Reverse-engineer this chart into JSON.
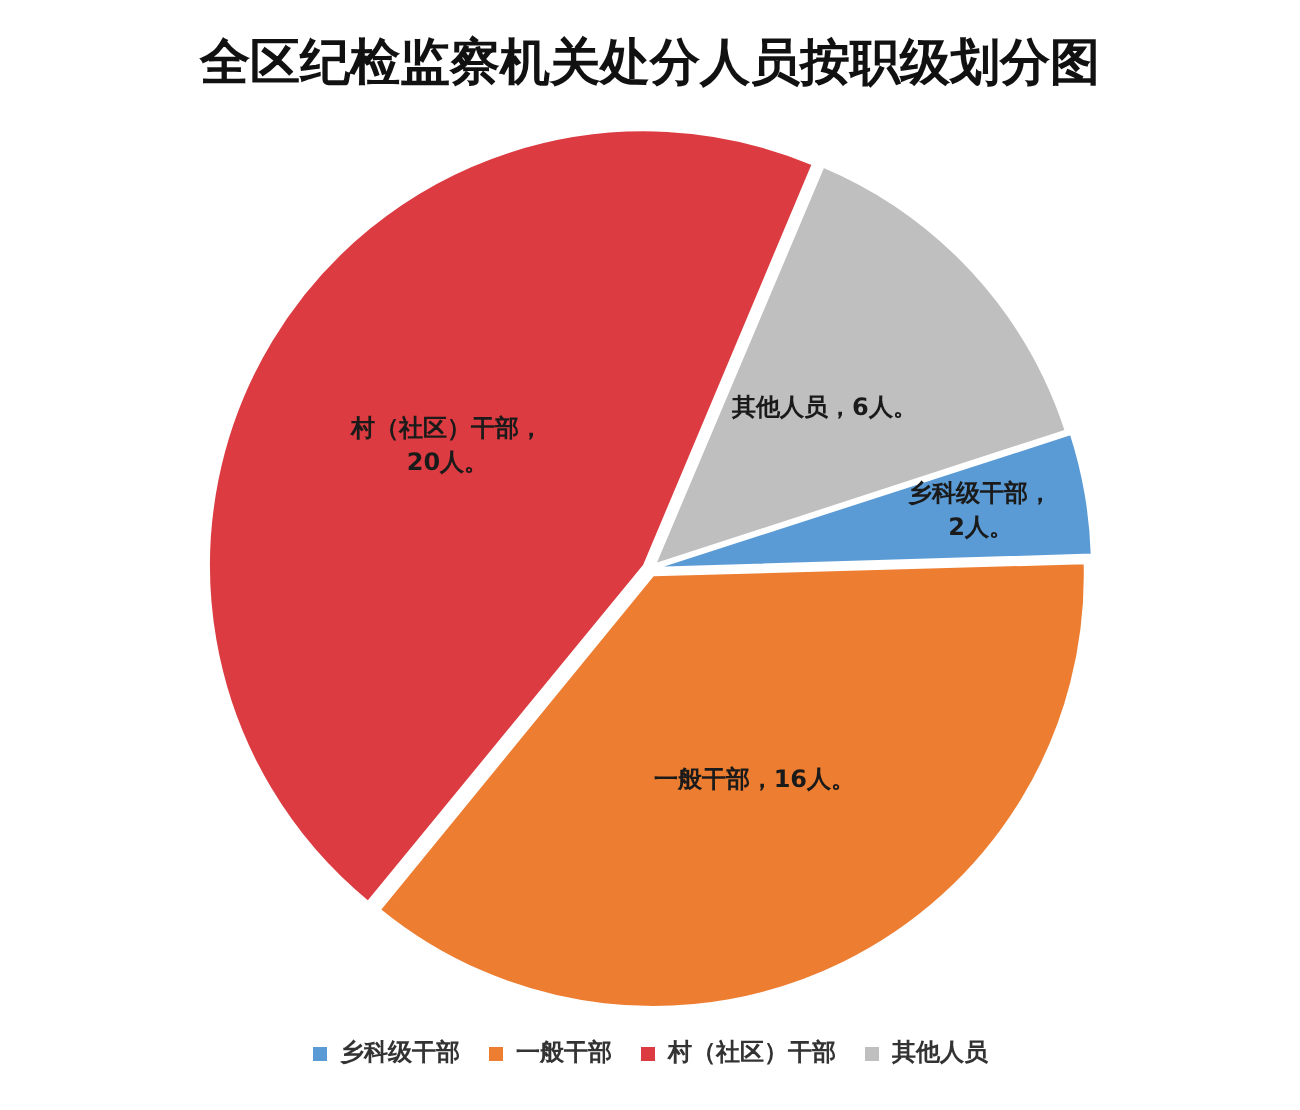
{
  "chart_data": {
    "type": "pie",
    "title": "全区纪检监察机关处分人员按职级划分图",
    "categories": [
      "乡科级干部",
      "一般干部",
      "村（社区）干部",
      "其他人员"
    ],
    "values": [
      2,
      16,
      20,
      6
    ],
    "colors": [
      "#5b9bd5",
      "#ed7d31",
      "#dc3c41",
      "#bfbfbf"
    ],
    "value_labels": [
      "乡科级干部，2人。",
      "一般干部，16人。",
      "村（社区）干部，20人。",
      "其他人员，6人。"
    ],
    "legend": "bottom"
  }
}
